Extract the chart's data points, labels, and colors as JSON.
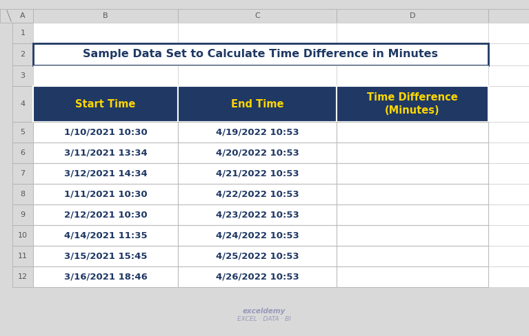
{
  "title": "Sample Data Set to Calculate Time Difference in Minutes",
  "title_color": "#1F3864",
  "title_fontsize": 11.5,
  "header_bg": "#1F3864",
  "header_text_color": "#FFD700",
  "header_labels": [
    "Start Time",
    "End Time",
    "Time Difference\n(Minutes)"
  ],
  "row_data": [
    [
      "1/10/2021 10:30",
      "4/19/2022 10:53",
      ""
    ],
    [
      "3/11/2021 13:34",
      "4/20/2022 10:53",
      ""
    ],
    [
      "3/12/2021 14:34",
      "4/21/2022 10:53",
      ""
    ],
    [
      "1/11/2021 10:30",
      "4/22/2022 10:53",
      ""
    ],
    [
      "2/12/2021 10:30",
      "4/23/2022 10:53",
      ""
    ],
    [
      "4/14/2021 11:35",
      "4/24/2022 10:53",
      ""
    ],
    [
      "3/15/2021 15:45",
      "4/25/2022 10:53",
      ""
    ],
    [
      "3/16/2021 18:46",
      "4/26/2022 10:53",
      ""
    ]
  ],
  "row_text_color": "#1F3864",
  "row_fontsize": 9.5,
  "header_fontsize": 10.5,
  "cell_bg_white": "#FFFFFF",
  "grid_color": "#BBBBBB",
  "excel_bg": "#D9D9D9",
  "excel_header_bg": "#D9D9D9",
  "excel_header_text": "#555555",
  "col_headers": [
    "A",
    "B",
    "C",
    "D"
  ],
  "row_headers": [
    "1",
    "2",
    "3",
    "4",
    "5",
    "6",
    "7",
    "8",
    "9",
    "10",
    "11",
    "12"
  ],
  "watermark_line1": "exceldemy",
  "watermark_line2": "EXCEL · DATA · BI",
  "watermark_color": "#9999BB",
  "title_border_color": "#1F3864"
}
